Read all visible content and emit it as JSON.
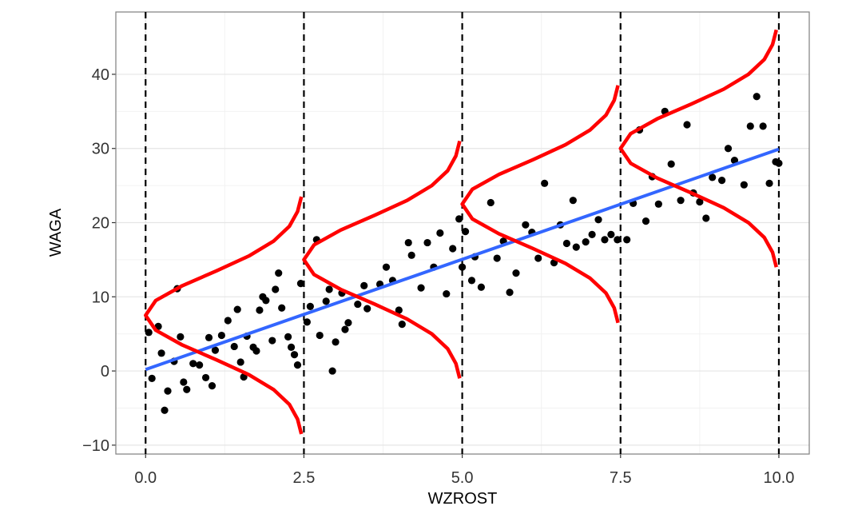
{
  "chart_data": {
    "type": "scatter",
    "x_label": "WZROST",
    "y_label": "WAGA",
    "xlim": [
      -0.47,
      10.48
    ],
    "ylim": [
      -11.2,
      48.4
    ],
    "xticks": [
      {
        "value": 0,
        "label": "0.0"
      },
      2.5,
      {
        "value": 5,
        "label": "5.0"
      },
      7.5,
      {
        "value": 10,
        "label": "10.0"
      }
    ],
    "yticks": [
      {
        "value": -10,
        "label": "−10"
      },
      0,
      10,
      20,
      30,
      40
    ],
    "grid": true,
    "points": {
      "color": "#000000",
      "x": [
        0.05,
        0.1,
        0.2,
        0.25,
        0.3,
        0.35,
        0.45,
        0.5,
        0.55,
        0.6,
        0.65,
        0.75,
        0.85,
        0.95,
        1.0,
        1.05,
        1.1,
        1.2,
        1.3,
        1.4,
        1.45,
        1.5,
        1.55,
        1.6,
        1.7,
        1.75,
        1.8,
        1.85,
        1.9,
        2.0,
        2.05,
        2.1,
        2.15,
        2.25,
        2.3,
        2.35,
        2.4,
        2.45,
        2.55,
        2.6,
        2.7,
        2.75,
        2.85,
        2.9,
        2.95,
        3.0,
        3.1,
        3.15,
        3.2,
        3.35,
        3.45,
        3.5,
        3.7,
        3.8,
        3.9,
        4.0,
        4.05,
        4.15,
        4.2,
        4.35,
        4.45,
        4.55,
        4.65,
        4.75,
        4.85,
        4.95,
        5.0,
        5.05,
        5.15,
        5.2,
        5.3,
        5.45,
        5.55,
        5.65,
        5.75,
        5.85,
        6.0,
        6.1,
        6.2,
        6.3,
        6.45,
        6.55,
        6.65,
        6.75,
        6.8,
        6.95,
        7.05,
        7.15,
        7.25,
        7.35,
        7.45,
        7.6,
        7.7,
        7.8,
        7.9,
        8.0,
        8.1,
        8.2,
        8.3,
        8.45,
        8.55,
        8.65,
        8.75,
        8.85,
        8.95,
        9.1,
        9.2,
        9.3,
        9.45,
        9.55,
        9.65,
        9.75,
        9.85,
        9.95,
        10.0
      ],
      "y": [
        5.2,
        -1,
        6,
        2.4,
        -5.3,
        -2.7,
        1.3,
        11.1,
        4.6,
        -1.5,
        -2.5,
        1.0,
        0.8,
        -0.9,
        4.5,
        -2.0,
        2.8,
        4.8,
        6.8,
        3.3,
        8.3,
        1.2,
        -0.8,
        4.7,
        3.2,
        2.7,
        8.2,
        10,
        9.5,
        4.1,
        11,
        13.2,
        8.5,
        4.6,
        3.2,
        2.2,
        0.8,
        11.8,
        6.6,
        8.7,
        17.7,
        4.8,
        9.4,
        11.0,
        0,
        3.9,
        10.5,
        5.6,
        6.5,
        9,
        11.5,
        8.4,
        11.7,
        14,
        12.2,
        8.2,
        6.3,
        17.3,
        15.6,
        11.2,
        17.3,
        14,
        18.6,
        10.4,
        16.5,
        20.5,
        14,
        18.8,
        12.2,
        15.4,
        11.3,
        22.7,
        15.2,
        17.5,
        10.6,
        13.2,
        19.7,
        18.7,
        15.2,
        25.3,
        14.6,
        19.7,
        17.2,
        23,
        16.7,
        17.4,
        18.4,
        20.4,
        17.7,
        18.4,
        17.7,
        17.7,
        22.6,
        32.5,
        20.2,
        26.2,
        22.5,
        35,
        27.9,
        23,
        33.2,
        24,
        22.8,
        20.6,
        26.1,
        25.7,
        30,
        28.4,
        25.1,
        33,
        37,
        33,
        25.3,
        28.2,
        28.0
      ]
    },
    "fit": {
      "color": "#3366ff",
      "x": [
        0,
        10
      ],
      "y": [
        0.2,
        29.9
      ]
    },
    "vlines": [
      0,
      2.5,
      5,
      7.5,
      10
    ],
    "density_color": "#ff0000",
    "densities": [
      {
        "x": [
          2.46,
          2.4,
          2.27,
          2.02,
          1.63,
          1.12,
          0.58,
          0.16,
          0.0,
          0.16,
          0.58,
          1.12,
          1.63,
          2.02,
          2.27,
          2.4,
          2.46
        ],
        "y": [
          -8.5,
          -6.5,
          -4.5,
          -2.5,
          -0.5,
          1.5,
          3.5,
          5.5,
          7.5,
          9.5,
          11.5,
          13.5,
          15.5,
          17.5,
          19.5,
          21.5,
          23.5
        ]
      },
      {
        "x": [
          4.96,
          4.9,
          4.77,
          4.52,
          4.13,
          3.62,
          3.08,
          2.66,
          2.5,
          2.66,
          3.08,
          3.62,
          4.13,
          4.52,
          4.77,
          4.9,
          4.96
        ],
        "y": [
          -1,
          1,
          3,
          5,
          7,
          9,
          11,
          13,
          15,
          17,
          19,
          21,
          23,
          25,
          27,
          29,
          31
        ]
      },
      {
        "x": [
          7.46,
          7.4,
          7.27,
          7.02,
          6.63,
          6.12,
          5.58,
          5.16,
          5.0,
          5.16,
          5.58,
          6.12,
          6.63,
          7.02,
          7.27,
          7.4,
          7.46
        ],
        "y": [
          6.5,
          8.5,
          10.5,
          12.5,
          14.5,
          16.5,
          18.5,
          20.5,
          22.5,
          24.5,
          26.5,
          28.5,
          30.5,
          32.5,
          34.5,
          36.5,
          38.5
        ]
      },
      {
        "x": [
          9.96,
          9.9,
          9.77,
          9.52,
          9.13,
          8.62,
          8.08,
          7.66,
          7.5,
          7.66,
          8.08,
          8.62,
          9.13,
          9.52,
          9.77,
          9.9,
          9.96
        ],
        "y": [
          14,
          16,
          18,
          20,
          22,
          24,
          26,
          28,
          30,
          32,
          34,
          36,
          38,
          40,
          42,
          44,
          46
        ]
      }
    ]
  }
}
